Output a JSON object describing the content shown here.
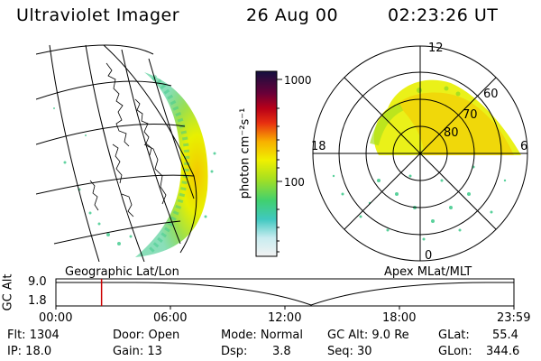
{
  "header": {
    "instrument": "Ultraviolet Imager",
    "date": "26 Aug 00",
    "time": "02:23:26 UT"
  },
  "colorbar": {
    "unit_label": "photon cm⁻²s⁻¹",
    "scale": "log",
    "ticks": [
      "1000",
      "100"
    ]
  },
  "left_panel": {
    "label": "Geographic Lat/Lon"
  },
  "right_panel": {
    "label": "Apex MLat/MLT",
    "mlt_labels": [
      "12",
      "18",
      "6",
      "0"
    ],
    "mlat_labels": [
      "60",
      "70",
      "80"
    ]
  },
  "timeline": {
    "ylabel": "GC Alt",
    "y_ticks": [
      "9.0",
      "1.8"
    ],
    "x_ticks": [
      "00:00",
      "06:00",
      "12:00",
      "18:00",
      "23:59"
    ],
    "marker_time": "02:23:26",
    "marker_color": "#cc0000"
  },
  "info": {
    "flt": "Flt: 1304",
    "ip": "IP: 18.0",
    "door": "Door: Open",
    "gain": "Gain: 13",
    "mode": "Mode: Normal",
    "dsp_label": "Dsp:",
    "dsp_value": "3.8",
    "gc_alt": "GC Alt: 9.0 Re",
    "seq": "Seq: 30",
    "glat_label": "GLat:",
    "glat_value": "55.4",
    "glon_label": "GLon:",
    "glon_value": "344.6"
  }
}
